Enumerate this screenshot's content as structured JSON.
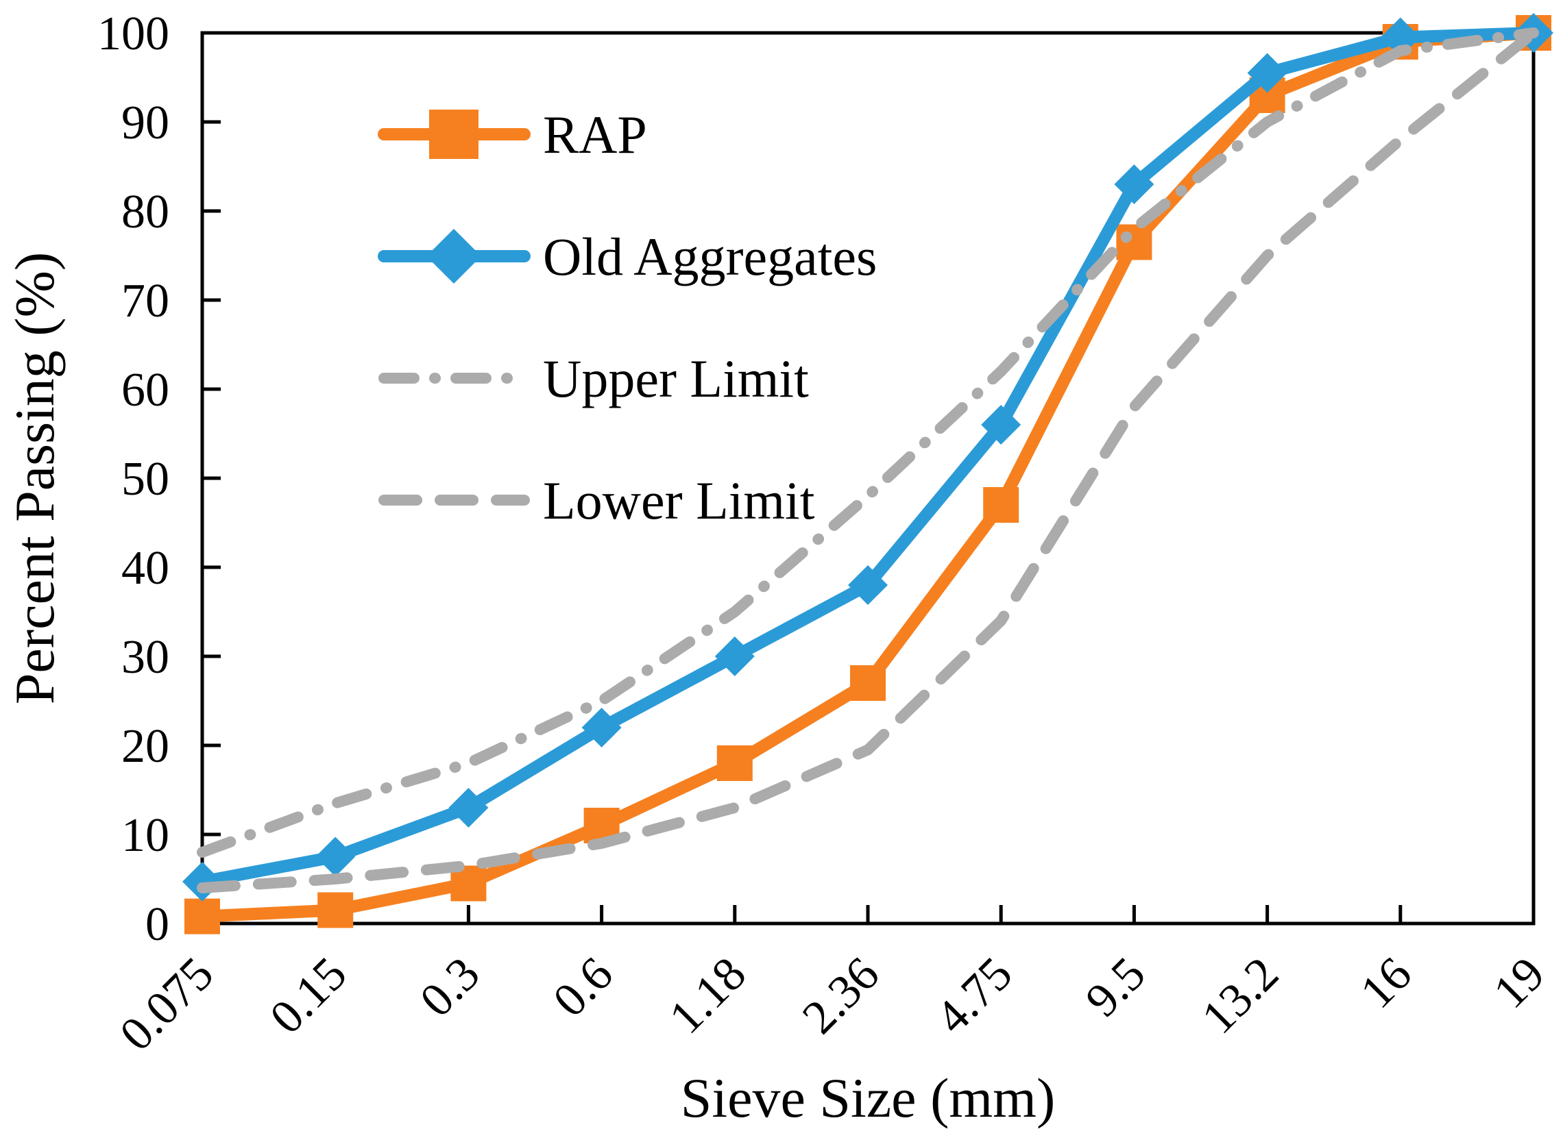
{
  "chart_data": {
    "type": "line",
    "title": "",
    "xlabel": "Sieve Size (mm)",
    "ylabel": "Percent Passing (%)",
    "categories": [
      "0.075",
      "0.15",
      "0.3",
      "0.6",
      "1.18",
      "2.36",
      "4.75",
      "9.5",
      "13.2",
      "16",
      "19"
    ],
    "ylim": [
      0,
      100
    ],
    "yticks": [
      0,
      10,
      20,
      30,
      40,
      50,
      60,
      70,
      80,
      90,
      100
    ],
    "grid": false,
    "legend_position": "inside-top-left",
    "axis_color": "#000000",
    "series": [
      {
        "name": "RAP",
        "color": "#F6801F",
        "marker": "square",
        "line_style": "solid",
        "values": [
          0.8,
          1.5,
          4.5,
          11,
          18,
          27,
          47,
          76.5,
          93,
          99,
          100
        ]
      },
      {
        "name": "Old Aggregates",
        "color": "#2B9BD7",
        "marker": "diamond",
        "line_style": "solid",
        "values": [
          4.7,
          7.5,
          13,
          22,
          30,
          38,
          56,
          83,
          95.5,
          99.5,
          100
        ]
      },
      {
        "name": "Upper Limit",
        "color": "#ABABAB",
        "marker": "none",
        "line_style": "dash-dot",
        "values": [
          8,
          13.5,
          18,
          25,
          35,
          48,
          62,
          78,
          90,
          98,
          100
        ]
      },
      {
        "name": "Lower Limit",
        "color": "#ABABAB",
        "marker": "none",
        "line_style": "dash",
        "values": [
          4,
          5,
          6.5,
          9,
          13,
          19.5,
          34,
          58,
          75,
          88,
          100
        ]
      }
    ]
  }
}
